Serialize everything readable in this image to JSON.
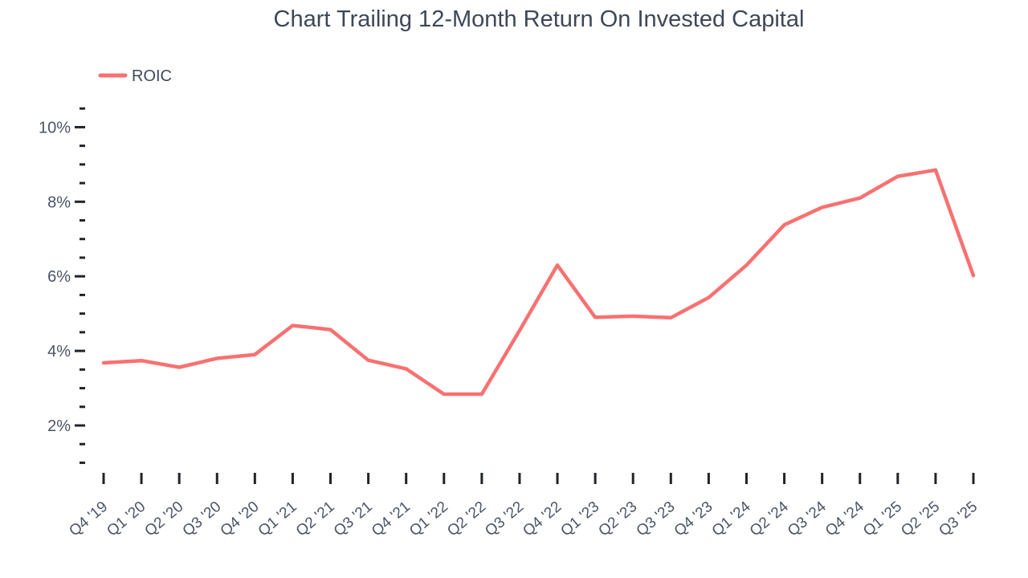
{
  "title": "Chart Trailing 12-Month Return On Invested Capital",
  "legend": {
    "label": "ROIC"
  },
  "colors": {
    "line": "#f87171",
    "title_text": "#3d4857",
    "axis_text": "#4a5568",
    "tick": "#20242c",
    "background": "#ffffff"
  },
  "chart_data": {
    "type": "line",
    "title": "Chart Trailing 12-Month Return On Invested Capital",
    "categories": [
      "Q4 '19",
      "Q1 '20",
      "Q2 '20",
      "Q3 '20",
      "Q4 '20",
      "Q1 '21",
      "Q2 '21",
      "Q3 '21",
      "Q4 '21",
      "Q1 '22",
      "Q2 '22",
      "Q3 '22",
      "Q4 '22",
      "Q1 '23",
      "Q2 '23",
      "Q3 '23",
      "Q4 '23",
      "Q1 '24",
      "Q2 '24",
      "Q3 '24",
      "Q4 '24",
      "Q1 '25",
      "Q2 '25",
      "Q3 '25"
    ],
    "series": [
      {
        "name": "ROIC",
        "color": "#f87171",
        "values": [
          3.68,
          3.74,
          3.56,
          3.8,
          3.9,
          4.68,
          4.57,
          3.75,
          3.52,
          2.84,
          2.84,
          4.55,
          6.3,
          4.9,
          4.93,
          4.89,
          5.43,
          6.3,
          7.38,
          7.85,
          8.1,
          8.68,
          8.85,
          6.02
        ]
      }
    ],
    "xlabel": "",
    "ylabel": "",
    "y_axis": {
      "unit": "%",
      "labeled_ticks": [
        2,
        4,
        6,
        8,
        10
      ],
      "minor_tick_step": 0.5,
      "min": 1.0,
      "max": 10.5
    },
    "x_axis": {
      "label_rotation_deg": -40
    },
    "grid": false,
    "legend_position": "top-left"
  }
}
